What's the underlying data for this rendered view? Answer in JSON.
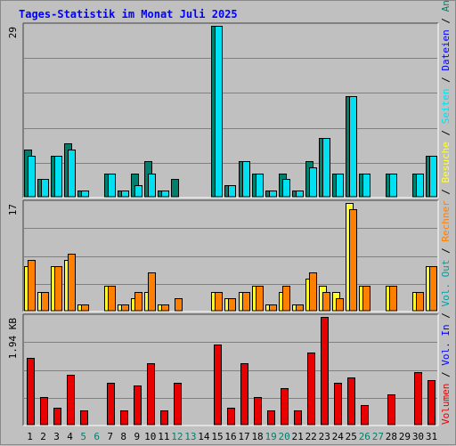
{
  "chart_data": [
    {
      "type": "bar",
      "title": "Tages-Statistik im Monat Juli 2025",
      "y_max_label": "29",
      "series_labels": [
        "Anfragen",
        "Dateien",
        "Seiten"
      ],
      "series_colors": [
        "#00806c",
        "#00e0f0",
        "#00a0a0"
      ],
      "categories": [
        "1",
        "2",
        "3",
        "4",
        "5",
        "6",
        "7",
        "8",
        "9",
        "10",
        "11",
        "12",
        "13",
        "14",
        "15",
        "16",
        "17",
        "18",
        "19",
        "20",
        "21",
        "22",
        "23",
        "24",
        "25",
        "26",
        "27",
        "28",
        "29",
        "30",
        "31"
      ],
      "series": [
        {
          "name": "Anfragen",
          "values": [
            8,
            3,
            7,
            9,
            1,
            0,
            4,
            1,
            4,
            6,
            1,
            3,
            0,
            0,
            29,
            2,
            6,
            4,
            1,
            4,
            1,
            6,
            10,
            4,
            17,
            4,
            0,
            4,
            0,
            4,
            7
          ]
        },
        {
          "name": "Dateien",
          "values": [
            7,
            3,
            7,
            8,
            1,
            0,
            4,
            1,
            2,
            4,
            1,
            0,
            0,
            0,
            29,
            2,
            6,
            4,
            1,
            3,
            1,
            5,
            10,
            4,
            17,
            4,
            0,
            4,
            0,
            4,
            7
          ]
        }
      ],
      "ylim": [
        0,
        29
      ]
    },
    {
      "type": "bar",
      "y_max_label": "17",
      "series_labels": [
        "Besuche",
        "Rechner"
      ],
      "series_colors": [
        "#ffff30",
        "#ff8000"
      ],
      "categories": [
        "1",
        "2",
        "3",
        "4",
        "5",
        "6",
        "7",
        "8",
        "9",
        "10",
        "11",
        "12",
        "13",
        "14",
        "15",
        "16",
        "17",
        "18",
        "19",
        "20",
        "21",
        "22",
        "23",
        "24",
        "25",
        "26",
        "27",
        "28",
        "29",
        "30",
        "31"
      ],
      "series": [
        {
          "name": "Besuche",
          "values": [
            7,
            3,
            7,
            8,
            1,
            0,
            4,
            1,
            2,
            3,
            1,
            0,
            0,
            0,
            3,
            2,
            3,
            4,
            1,
            3,
            1,
            5,
            4,
            3,
            17,
            4,
            0,
            4,
            0,
            3,
            7
          ]
        },
        {
          "name": "Rechner",
          "values": [
            8,
            3,
            7,
            9,
            1,
            0,
            4,
            1,
            3,
            6,
            1,
            2,
            0,
            0,
            3,
            2,
            3,
            4,
            1,
            4,
            1,
            6,
            3,
            2,
            16,
            4,
            0,
            4,
            0,
            3,
            7
          ]
        }
      ],
      "ylim": [
        0,
        17
      ]
    },
    {
      "type": "bar",
      "y_max_label": "1.94 KB",
      "series_labels": [
        "Volumen",
        "Vol. In",
        "Vol. Out"
      ],
      "series_colors": [
        "#e80000",
        "#0000ff",
        "#00a0a0"
      ],
      "categories": [
        "1",
        "2",
        "3",
        "4",
        "5",
        "6",
        "7",
        "8",
        "9",
        "10",
        "11",
        "12",
        "13",
        "14",
        "15",
        "16",
        "17",
        "18",
        "19",
        "20",
        "21",
        "22",
        "23",
        "24",
        "25",
        "26",
        "27",
        "28",
        "29",
        "30",
        "31"
      ],
      "series": [
        {
          "name": "Volumen",
          "values": [
            1.2,
            0.5,
            0.3,
            0.9,
            0.25,
            0,
            0.75,
            0.25,
            0.7,
            1.1,
            0.25,
            0.75,
            0,
            0,
            1.45,
            0.3,
            1.1,
            0.5,
            0.25,
            0.65,
            0.25,
            1.3,
            1.94,
            0.75,
            0.85,
            0.35,
            0,
            0.55,
            0,
            0.95,
            0.8
          ]
        }
      ],
      "ylim": [
        0,
        1.94
      ]
    }
  ],
  "x_labels": [
    {
      "text": "1",
      "color": "#000000"
    },
    {
      "text": "2",
      "color": "#000000"
    },
    {
      "text": "3",
      "color": "#000000"
    },
    {
      "text": "4",
      "color": "#000000"
    },
    {
      "text": "5",
      "color": "#00806c"
    },
    {
      "text": "6",
      "color": "#00806c"
    },
    {
      "text": "7",
      "color": "#000000"
    },
    {
      "text": "8",
      "color": "#000000"
    },
    {
      "text": "9",
      "color": "#000000"
    },
    {
      "text": "10",
      "color": "#000000"
    },
    {
      "text": "11",
      "color": "#000000"
    },
    {
      "text": "12",
      "color": "#00806c"
    },
    {
      "text": "13",
      "color": "#00806c"
    },
    {
      "text": "14",
      "color": "#000000"
    },
    {
      "text": "15",
      "color": "#000000"
    },
    {
      "text": "16",
      "color": "#000000"
    },
    {
      "text": "17",
      "color": "#000000"
    },
    {
      "text": "18",
      "color": "#000000"
    },
    {
      "text": "19",
      "color": "#00806c"
    },
    {
      "text": "20",
      "color": "#00806c"
    },
    {
      "text": "21",
      "color": "#000000"
    },
    {
      "text": "22",
      "color": "#000000"
    },
    {
      "text": "23",
      "color": "#000000"
    },
    {
      "text": "24",
      "color": "#000000"
    },
    {
      "text": "25",
      "color": "#000000"
    },
    {
      "text": "26",
      "color": "#00806c"
    },
    {
      "text": "27",
      "color": "#00806c"
    },
    {
      "text": "28",
      "color": "#000000"
    },
    {
      "text": "29",
      "color": "#000000"
    },
    {
      "text": "30",
      "color": "#000000"
    },
    {
      "text": "31",
      "color": "#000000"
    }
  ],
  "separator": " / "
}
